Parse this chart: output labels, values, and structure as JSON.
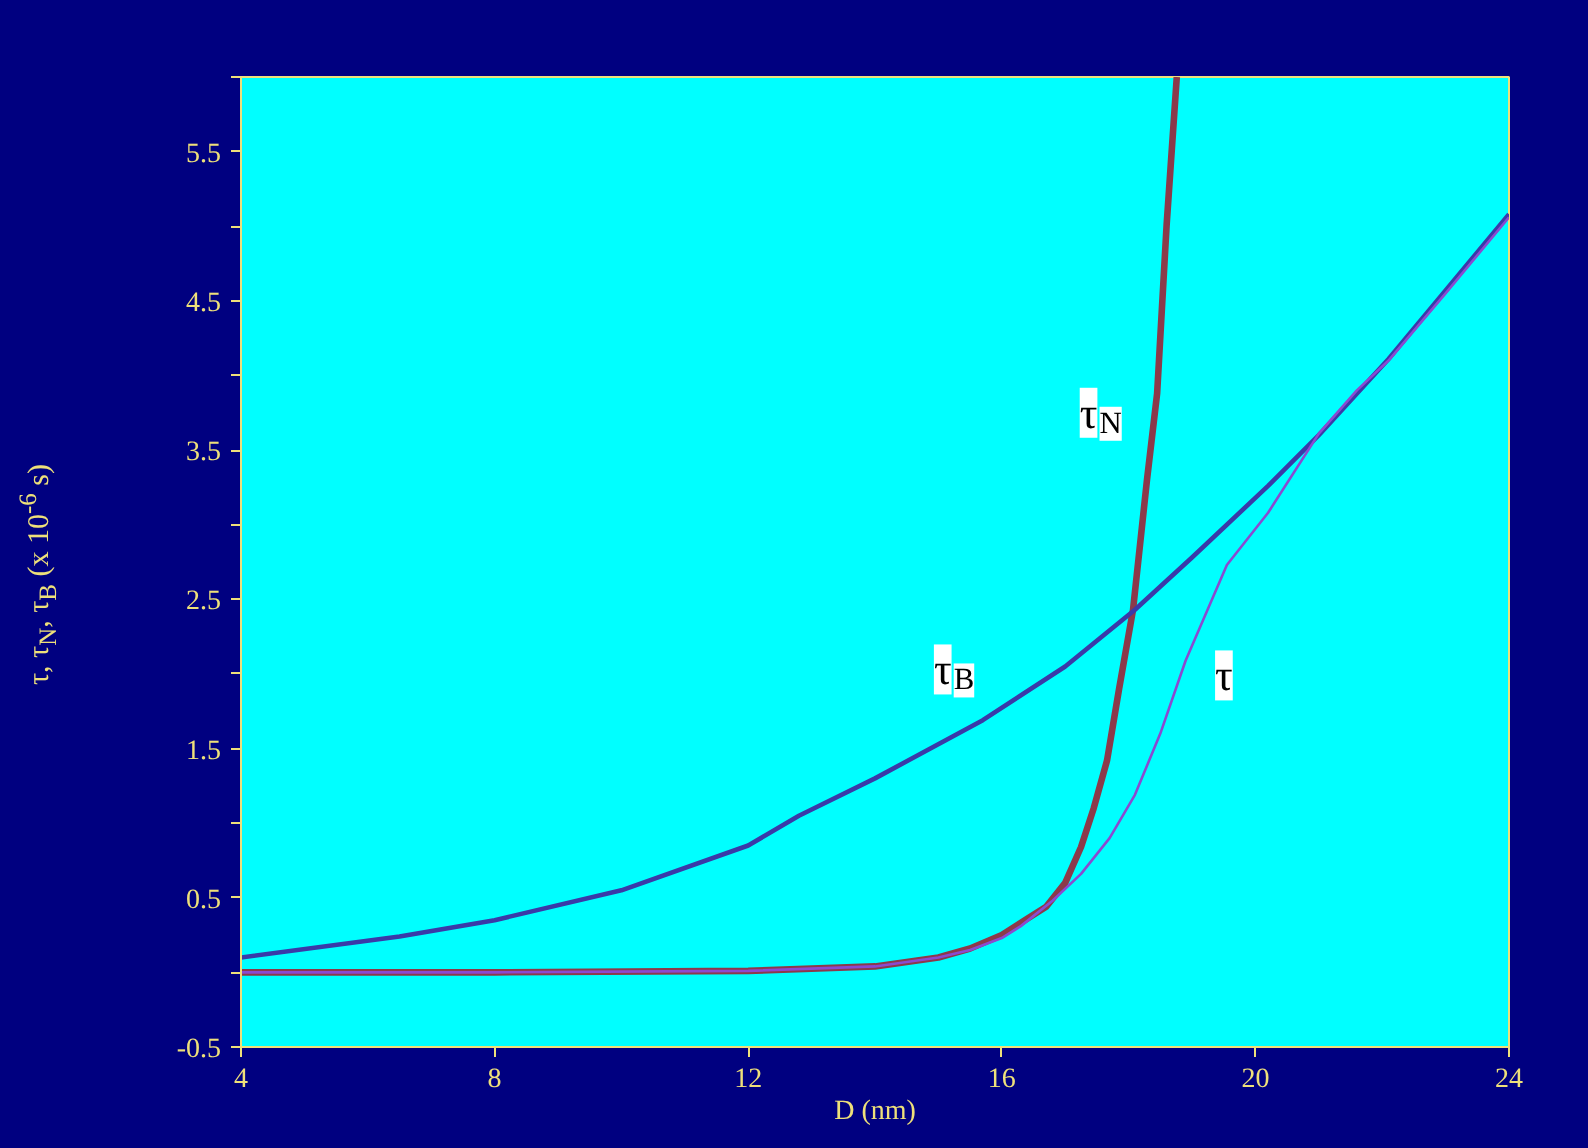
{
  "chart_data": {
    "type": "line",
    "xlabel": "D (nm)",
    "ylabel": "τ, τ$_{N}$, τ$_{B}$ (x 10$^{-6}$ s)",
    "xlim": [
      4,
      24
    ],
    "ylim": [
      -0.5,
      6
    ],
    "xticks": [
      4,
      8,
      12,
      16,
      20,
      24
    ],
    "yticks": [
      -0.5,
      {
        "value": 0,
        "label": null
      },
      0.5,
      {
        "value": 1,
        "label": null
      },
      1.5,
      {
        "value": 2,
        "label": null
      },
      2.5,
      {
        "value": 3,
        "label": null
      },
      3.5,
      {
        "value": 4,
        "label": null
      },
      4.5,
      {
        "value": 5,
        "label": null
      },
      5.5,
      {
        "value": 6,
        "label": null
      }
    ],
    "grid": false,
    "legend": false,
    "series": [
      {
        "name": "τ$_{N}$",
        "color": "#8b3a4a",
        "x": [
          4,
          8,
          12,
          14,
          15,
          15.5,
          16,
          16.4,
          16.7,
          17,
          17.25,
          17.45,
          17.66,
          17.85,
          18.07,
          18.29,
          18.45,
          18.6,
          18.76
        ],
        "values": [
          0,
          0,
          0.01,
          0.04,
          0.1,
          0.16,
          0.25,
          0.36,
          0.44,
          0.6,
          0.84,
          1.1,
          1.42,
          1.9,
          2.43,
          3.3,
          3.88,
          5.01,
          6.0
        ]
      },
      {
        "name": "τ$_{B}$",
        "color": "#3a3aa8",
        "x": [
          4,
          6.5,
          8,
          10,
          12,
          12.8,
          14,
          15.7,
          17,
          18.1,
          19,
          20.2,
          21,
          22.1,
          23,
          24
        ],
        "values": [
          0.1,
          0.24,
          0.35,
          0.55,
          0.85,
          1.05,
          1.3,
          1.69,
          2.05,
          2.43,
          2.78,
          3.26,
          3.6,
          4.11,
          4.57,
          5.08
        ]
      },
      {
        "name": "τ",
        "color": "#8a4ad0",
        "x": [
          4,
          8,
          12,
          14,
          15,
          15.5,
          16,
          16.3,
          16.8,
          17.25,
          17.7,
          18.1,
          18.5,
          18.9,
          19.55,
          20.2,
          21,
          21.6,
          22.1,
          23,
          24
        ],
        "values": [
          0,
          0,
          0.01,
          0.04,
          0.1,
          0.15,
          0.23,
          0.31,
          0.48,
          0.66,
          0.9,
          1.19,
          1.6,
          2.09,
          2.73,
          3.08,
          3.61,
          3.9,
          4.1,
          4.55,
          5.06
        ]
      }
    ]
  }
}
